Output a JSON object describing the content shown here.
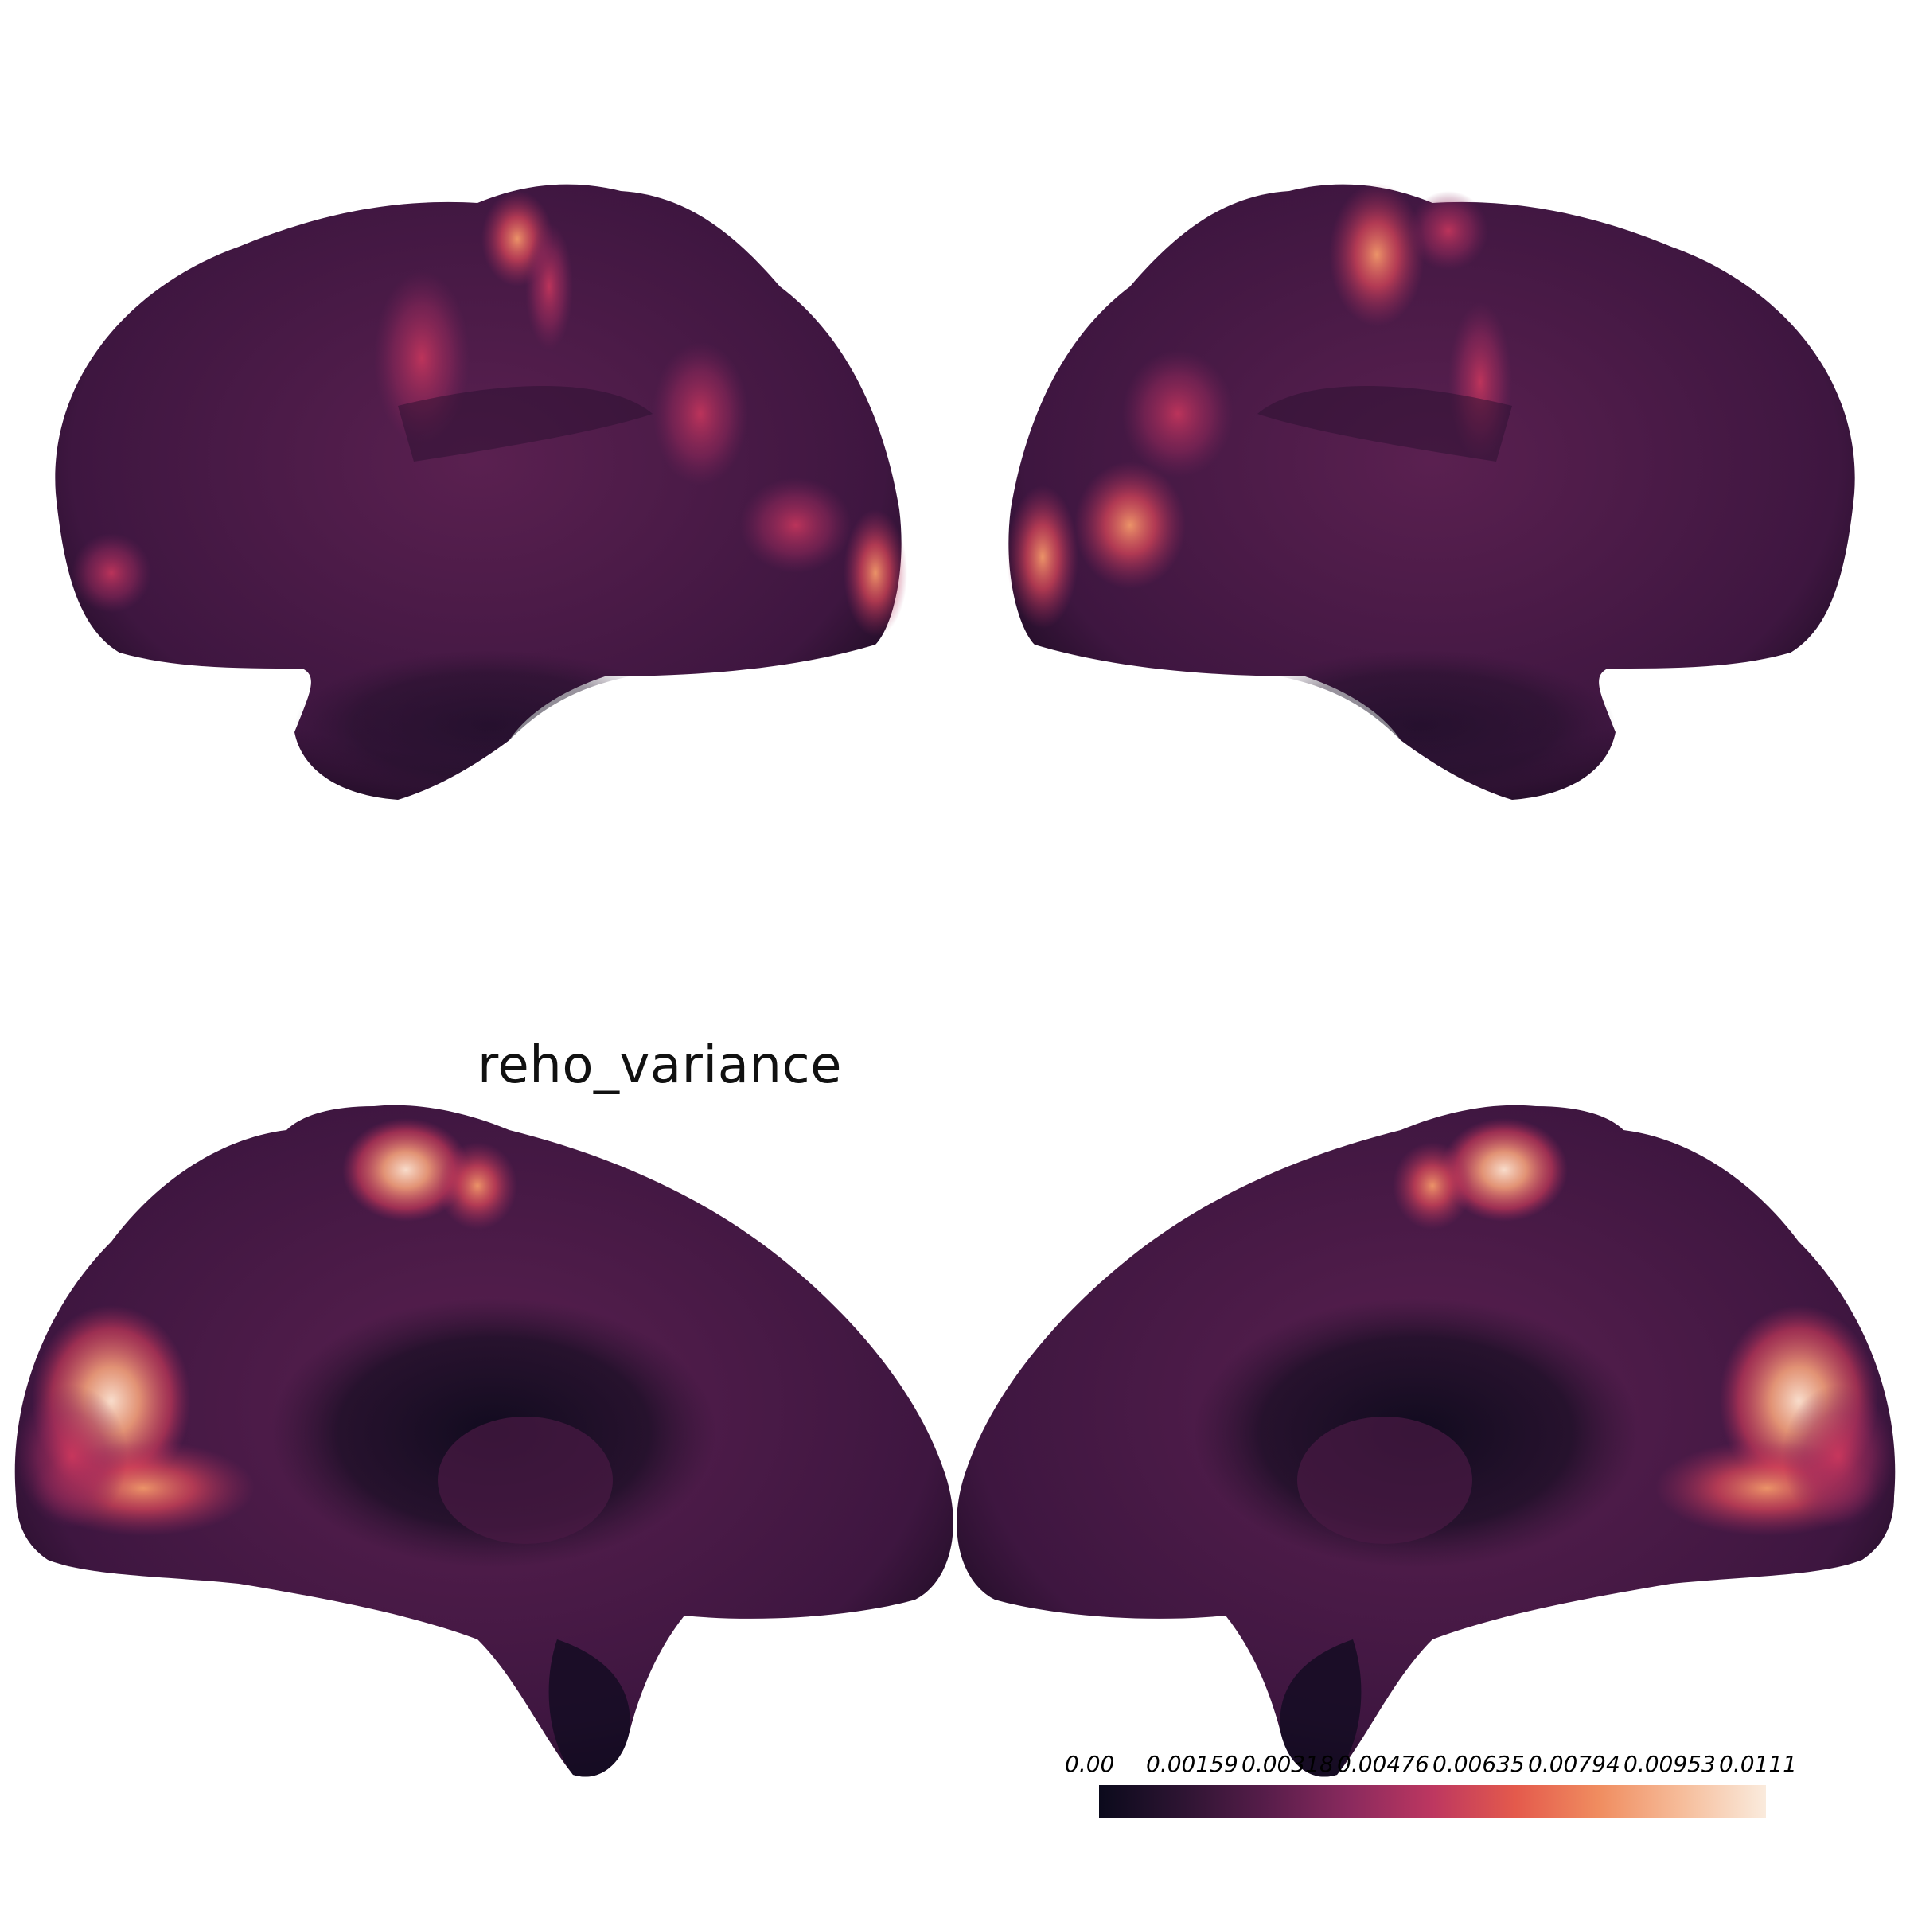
{
  "figure": {
    "title": "reho_variance",
    "views": [
      {
        "id": "left-lateral",
        "name": "left lateral surface"
      },
      {
        "id": "right-lateral",
        "name": "right lateral surface"
      },
      {
        "id": "left-medial",
        "name": "left medial surface"
      },
      {
        "id": "right-medial",
        "name": "right medial surface"
      }
    ]
  },
  "colorbar": {
    "colormap": "rocket",
    "colors": [
      "#0b0a1c",
      "#2d1432",
      "#571d4a",
      "#8a2a5e",
      "#bd3760",
      "#e45a4c",
      "#f08d60",
      "#f6bd9b",
      "#faebdd"
    ],
    "ticks": [
      "0.00",
      "0.00159",
      "0.00318",
      "0.00476",
      "0.00635",
      "0.00794",
      "0.00953",
      "0.0111"
    ],
    "min": 0.0,
    "max": 0.0111
  }
}
